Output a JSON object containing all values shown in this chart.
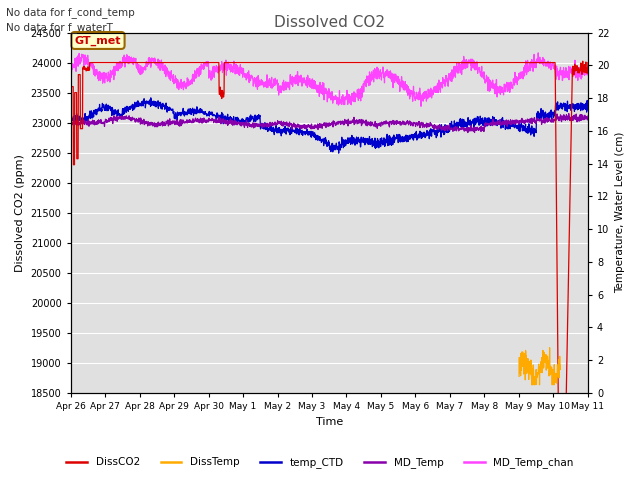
{
  "title": "Dissolved CO2",
  "subtitle1": "No data for f_cond_temp",
  "subtitle2": "No data for f_waterT",
  "annotation": "GT_met",
  "xlabel": "Time",
  "ylabel_left": "Dissolved CO2 (ppm)",
  "ylabel_right": "Temperature, Water Level (cm)",
  "ylim_left": [
    18500,
    24500
  ],
  "ylim_right": [
    0,
    22
  ],
  "yticks_left": [
    18500,
    19000,
    19500,
    20000,
    20500,
    21000,
    21500,
    22000,
    22500,
    23000,
    23500,
    24000,
    24500
  ],
  "yticks_right": [
    0,
    2,
    4,
    6,
    8,
    10,
    12,
    14,
    16,
    18,
    20,
    22
  ],
  "colors": {
    "DissCO2": "#dd0000",
    "DissTemp": "#ffaa00",
    "temp_CTD": "#0000cc",
    "MD_Temp": "#8800aa",
    "MD_Temp_chan": "#ff44ff"
  },
  "xtick_labels": [
    "Apr 26",
    "Apr 27",
    "Apr 28",
    "Apr 29",
    "Apr 30",
    "May 1",
    "May 2",
    "May 3",
    "May 4",
    "May 5",
    "May 6",
    "May 7",
    "May 8",
    "May 9",
    "May 10",
    "May 11"
  ]
}
